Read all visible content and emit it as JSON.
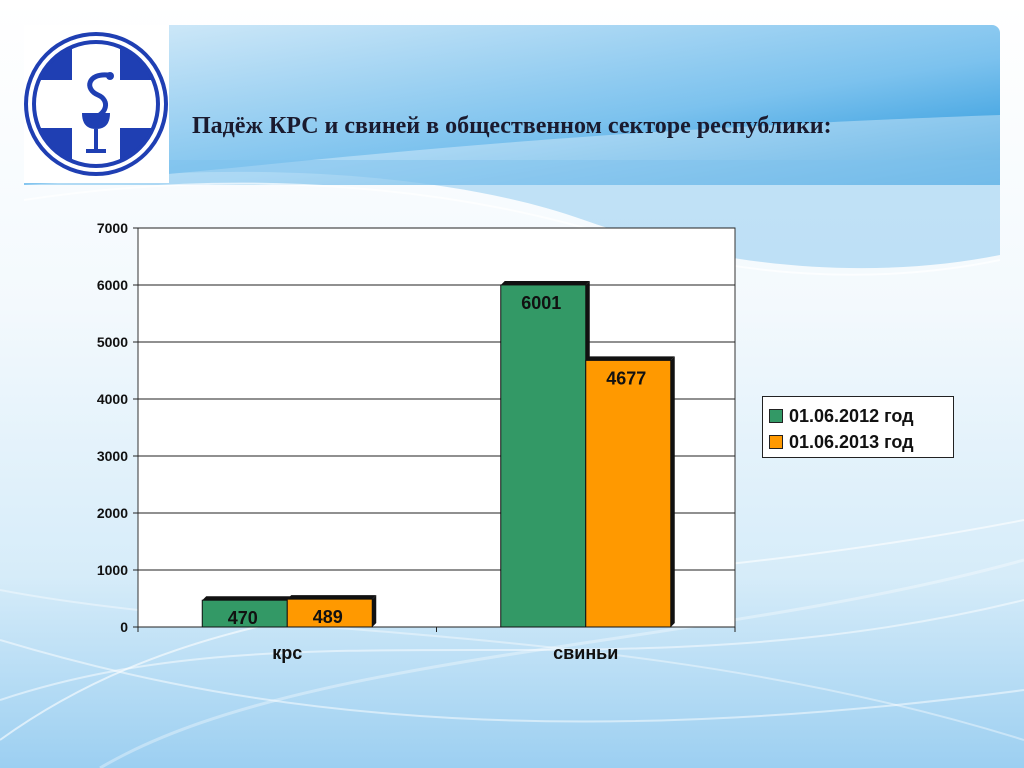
{
  "slide": {
    "title": "Падёж КРС и свиней в общественном секторе республики:",
    "logo_icon": "medical-cross-caduceus-logo"
  },
  "colors": {
    "logo_blue": "#1f3fb3",
    "header_blue": "#1a8fd8",
    "series_2012": "#339966",
    "series_2013": "#ff9900",
    "bar_edge": "#111111"
  },
  "chart_data": {
    "type": "bar",
    "categories": [
      "крс",
      "свиньи"
    ],
    "series": [
      {
        "name": "01.06.2012 год",
        "values": [
          470,
          6001
        ],
        "color": "#339966"
      },
      {
        "name": "01.06.2013 год",
        "values": [
          489,
          4677
        ],
        "color": "#ff9900"
      }
    ],
    "ylim": [
      0,
      7000
    ],
    "yticks": [
      0,
      1000,
      2000,
      3000,
      4000,
      5000,
      6000,
      7000
    ],
    "grid": true,
    "data_labels": true,
    "legend_position": "right"
  }
}
